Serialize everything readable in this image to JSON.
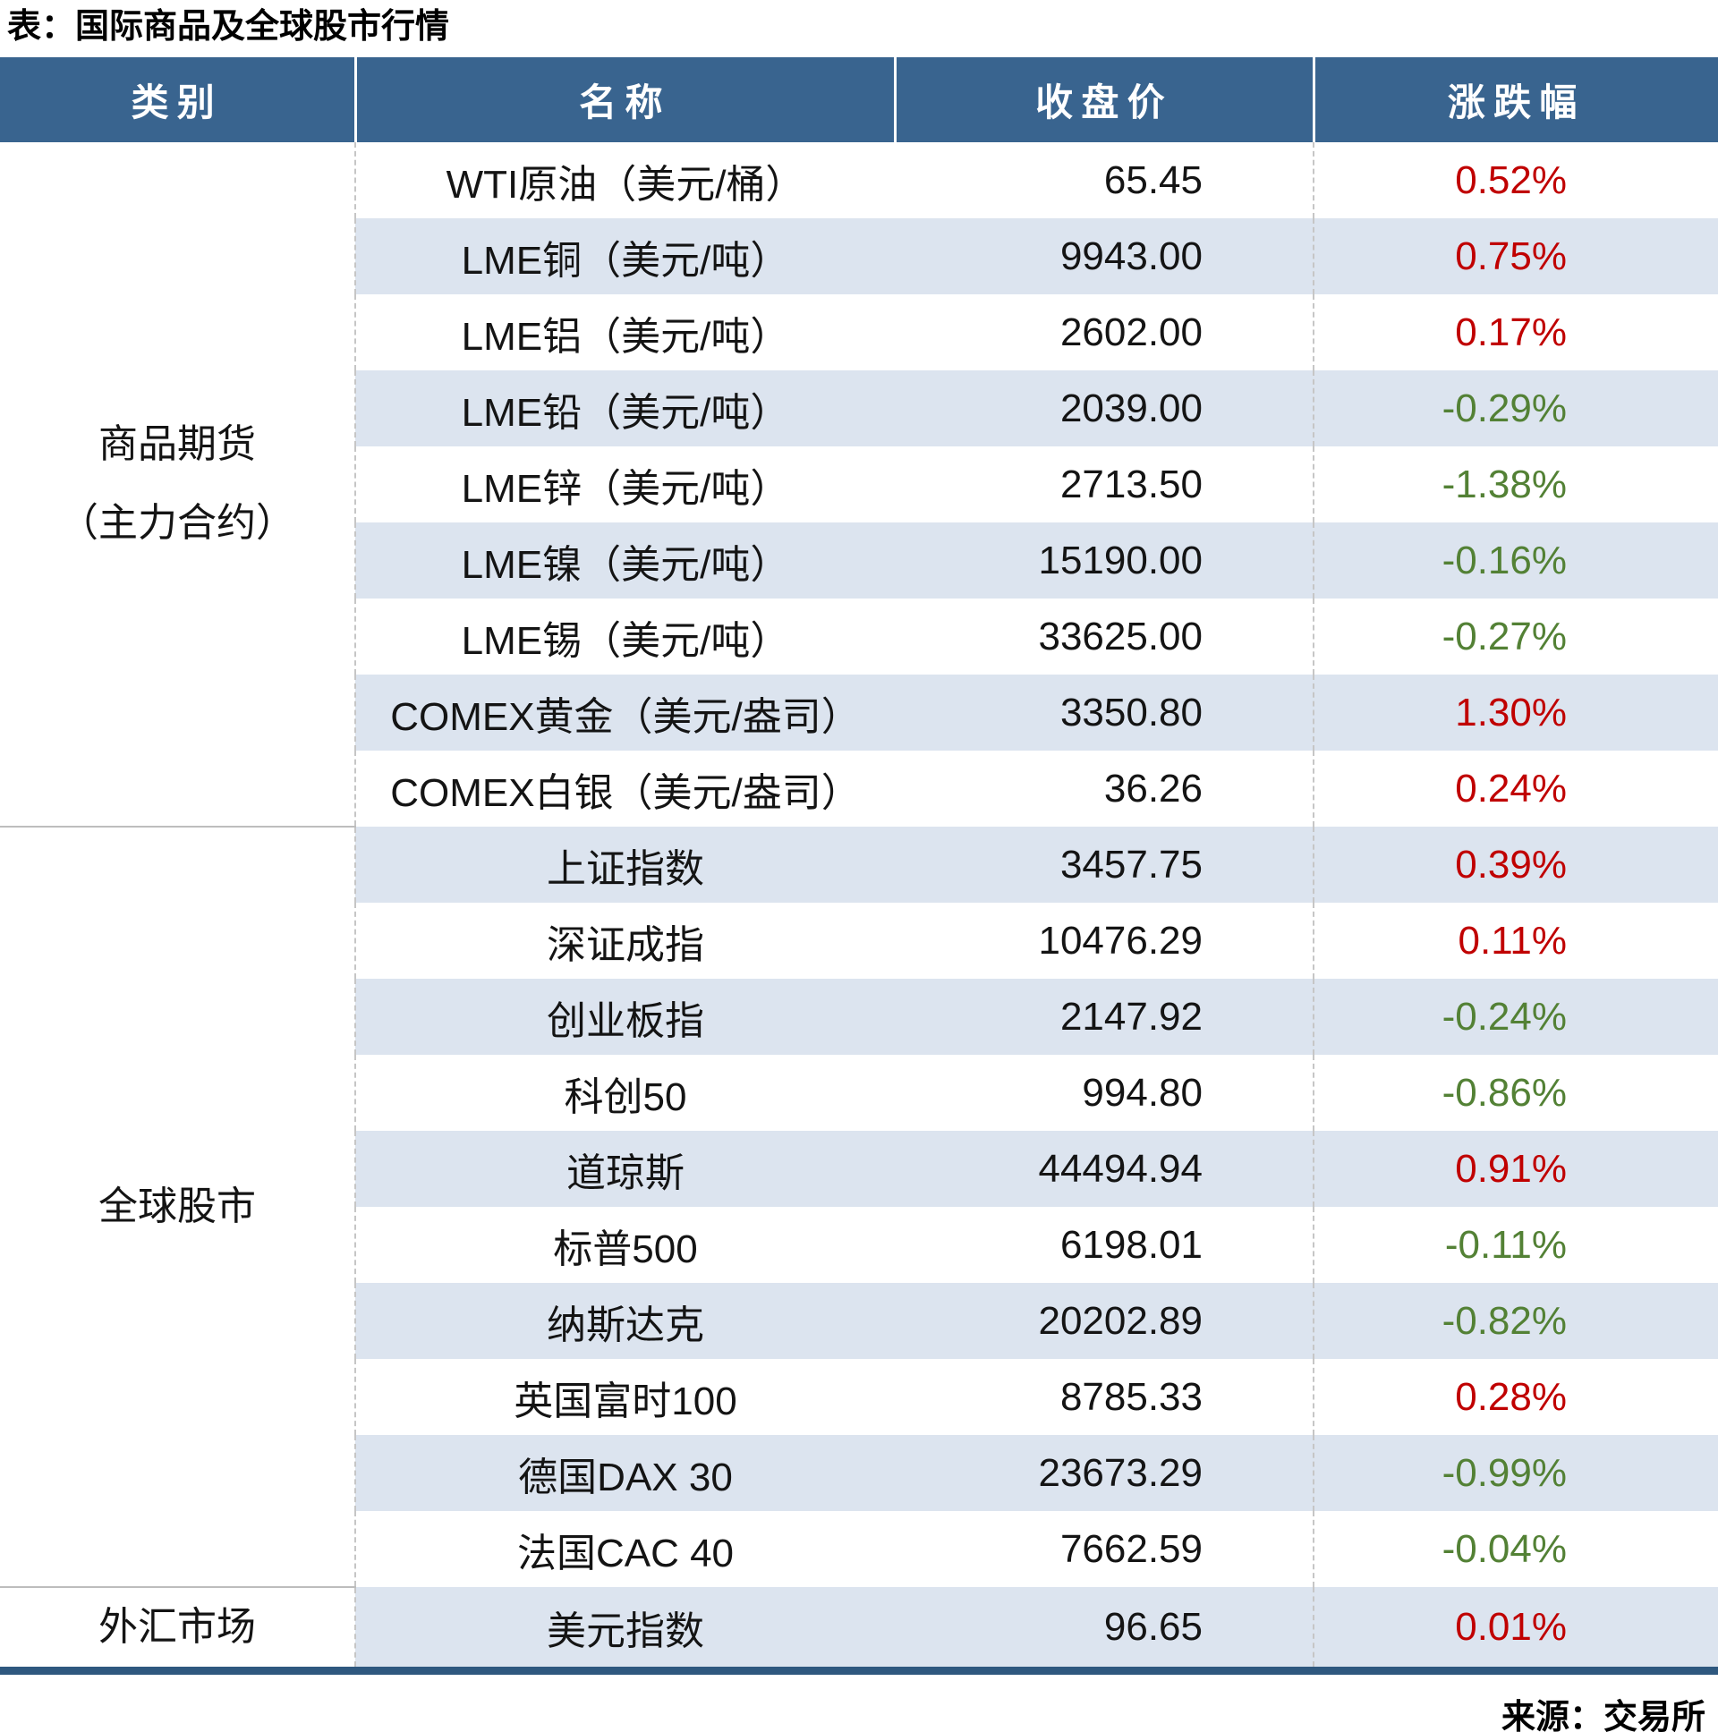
{
  "title": "表：国际商品及全球股市行情",
  "source": "来源：交易所",
  "colors": {
    "header_bg": "#39648F",
    "row_alt_bg": "#DCE4EF",
    "up_red": "#C00000",
    "down_green": "#538135",
    "bottom_border": "#2E587F"
  },
  "chart_data": {
    "type": "table",
    "columns": [
      "类别",
      "名称",
      "收盘价",
      "涨跌幅"
    ],
    "sections": [
      {
        "category_lines": [
          "商品期货",
          "（主力合约）"
        ],
        "rows": [
          {
            "name": "WTI原油（美元/桶）",
            "close": "65.45",
            "change": "0.52%",
            "direction": "up"
          },
          {
            "name": "LME铜（美元/吨）",
            "close": "9943.00",
            "change": "0.75%",
            "direction": "up"
          },
          {
            "name": "LME铝（美元/吨）",
            "close": "2602.00",
            "change": "0.17%",
            "direction": "up"
          },
          {
            "name": "LME铅（美元/吨）",
            "close": "2039.00",
            "change": "-0.29%",
            "direction": "down"
          },
          {
            "name": "LME锌（美元/吨）",
            "close": "2713.50",
            "change": "-1.38%",
            "direction": "down"
          },
          {
            "name": "LME镍（美元/吨）",
            "close": "15190.00",
            "change": "-0.16%",
            "direction": "down"
          },
          {
            "name": "LME锡（美元/吨）",
            "close": "33625.00",
            "change": "-0.27%",
            "direction": "down"
          },
          {
            "name": "COMEX黄金（美元/盎司）",
            "close": "3350.80",
            "change": "1.30%",
            "direction": "up"
          },
          {
            "name": "COMEX白银（美元/盎司）",
            "close": "36.26",
            "change": "0.24%",
            "direction": "up"
          }
        ]
      },
      {
        "category_lines": [
          "全球股市"
        ],
        "rows": [
          {
            "name": "上证指数",
            "close": "3457.75",
            "change": "0.39%",
            "direction": "up"
          },
          {
            "name": "深证成指",
            "close": "10476.29",
            "change": "0.11%",
            "direction": "up"
          },
          {
            "name": "创业板指",
            "close": "2147.92",
            "change": "-0.24%",
            "direction": "down"
          },
          {
            "name": "科创50",
            "close": "994.80",
            "change": "-0.86%",
            "direction": "down"
          },
          {
            "name": "道琼斯",
            "close": "44494.94",
            "change": "0.91%",
            "direction": "up"
          },
          {
            "name": "标普500",
            "close": "6198.01",
            "change": "-0.11%",
            "direction": "down"
          },
          {
            "name": "纳斯达克",
            "close": "20202.89",
            "change": "-0.82%",
            "direction": "down"
          },
          {
            "name": "英国富时100",
            "close": "8785.33",
            "change": "0.28%",
            "direction": "up"
          },
          {
            "name": "德国DAX 30",
            "close": "23673.29",
            "change": "-0.99%",
            "direction": "down"
          },
          {
            "name": "法国CAC 40",
            "close": "7662.59",
            "change": "-0.04%",
            "direction": "down"
          }
        ]
      },
      {
        "category_lines": [
          "外汇市场"
        ],
        "rows": [
          {
            "name": "美元指数",
            "close": "96.65",
            "change": "0.01%",
            "direction": "up"
          }
        ]
      }
    ]
  }
}
